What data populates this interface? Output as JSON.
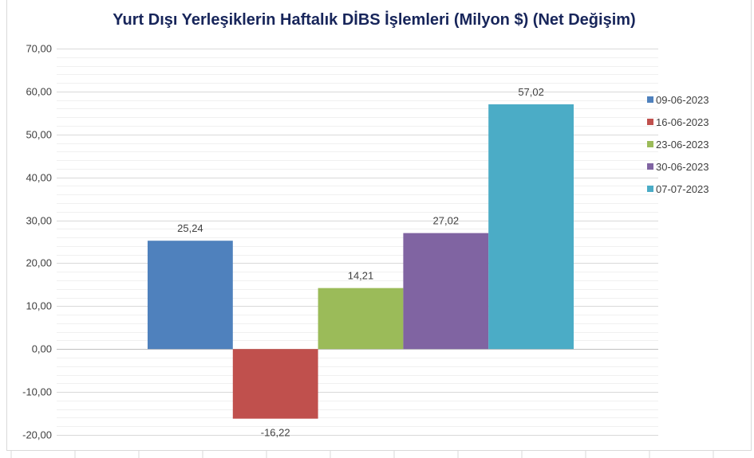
{
  "chart_data": {
    "type": "bar",
    "title": "Yurt Dışı Yerleşiklerin Haftalık DİBS İşlemleri (Milyon $) (Net Değişim)",
    "xlabel": "",
    "ylabel": "",
    "ylim": [
      -20,
      70
    ],
    "yticks": [
      70,
      60,
      50,
      40,
      30,
      20,
      10,
      0,
      -10,
      -20
    ],
    "ytick_labels": [
      "70,00",
      "60,00",
      "50,00",
      "40,00",
      "30,00",
      "20,00",
      "10,00",
      "0,00",
      "-10,00",
      "-20,00"
    ],
    "grid": true,
    "legend_position": "right",
    "series": [
      {
        "name": "09-06-2023",
        "values": [
          25.24
        ],
        "label": "25,24",
        "color": "#4f81bd"
      },
      {
        "name": "16-06-2023",
        "values": [
          -16.22
        ],
        "label": "-16,22",
        "color": "#c0504d"
      },
      {
        "name": "23-06-2023",
        "values": [
          14.21
        ],
        "label": "14,21",
        "color": "#9bbb59"
      },
      {
        "name": "30-06-2023",
        "values": [
          27.02
        ],
        "label": "27,02",
        "color": "#8064a2"
      },
      {
        "name": "07-07-2023",
        "values": [
          57.02
        ],
        "label": "57,02",
        "color": "#4bacc6"
      }
    ]
  }
}
